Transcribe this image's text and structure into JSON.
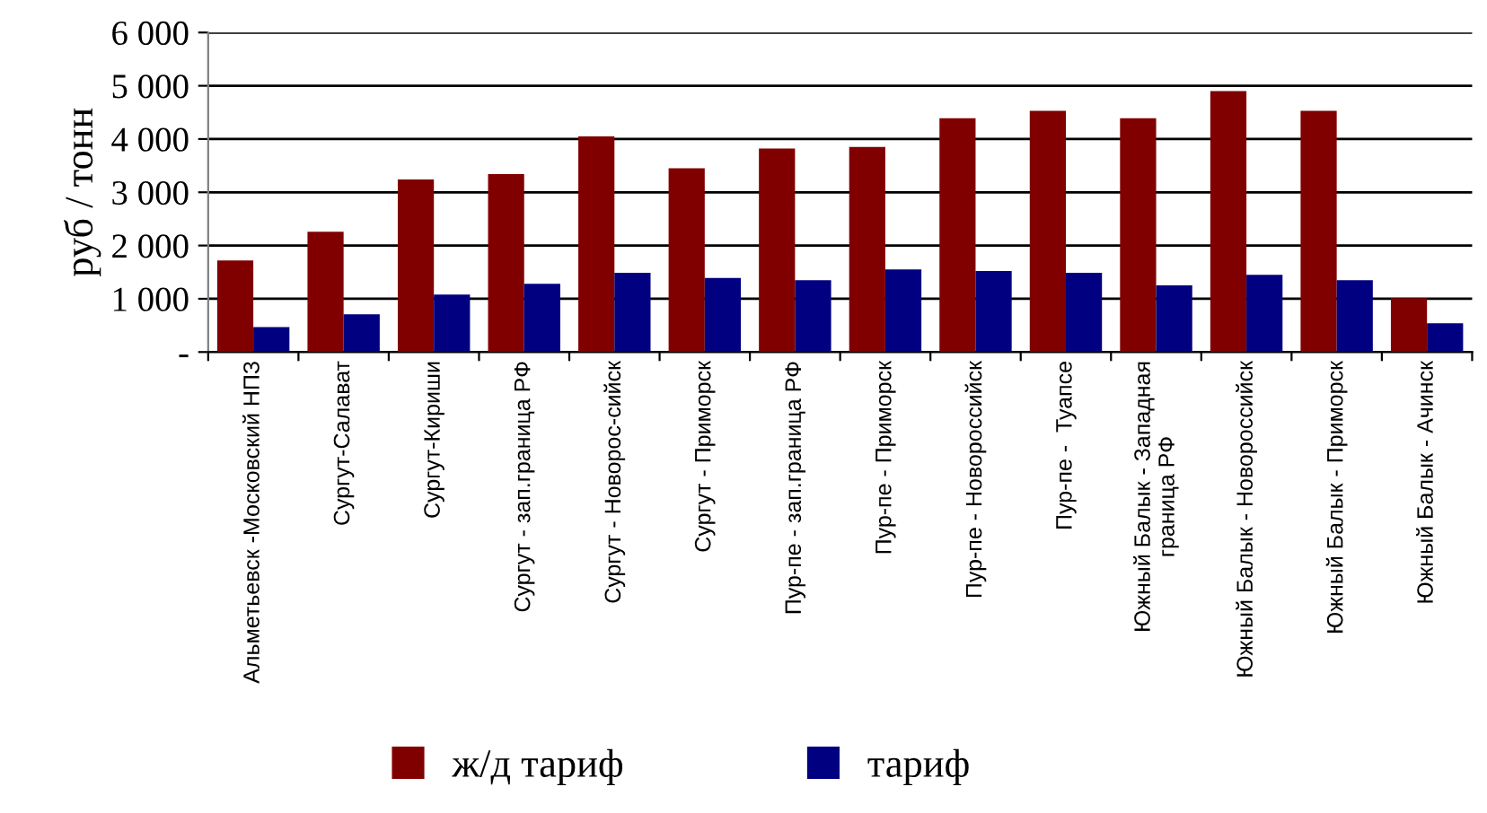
{
  "chart_data": {
    "type": "bar",
    "ylabel": "руб / тонн",
    "categories": [
      "Альметьевск -Московский НПЗ",
      "Сургут-Салават",
      "Сургут-Кириши",
      "Сургут - зап.граница РФ",
      "Сургут - Новорос-сийск",
      "Сургут - Приморск",
      "Пур-пе - зап.граница РФ",
      "Пур-пе - Приморск",
      "Пур-пе - Новороссийск",
      "Пур-пе -  Туапсе",
      "Южный Балык - Западная\nграница РФ",
      "Южный Балык - Новороссийск",
      "Южный Балык - Приморск",
      "Южный Балык - Ачинск"
    ],
    "series": [
      {
        "name": "ж/д тариф",
        "color": "#800000",
        "values": [
          1720,
          2260,
          3240,
          3340,
          4050,
          3450,
          3820,
          3850,
          4390,
          4530,
          4390,
          4900,
          4530,
          1010
        ]
      },
      {
        "name": "тариф",
        "color": "#000080",
        "values": [
          470,
          710,
          1080,
          1280,
          1490,
          1390,
          1350,
          1550,
          1520,
          1490,
          1250,
          1450,
          1350,
          540
        ]
      }
    ],
    "ylim": [
      0,
      6000
    ],
    "yticks": [
      {
        "value": 0,
        "label": "-"
      },
      {
        "value": 1000,
        "label": "1 000"
      },
      {
        "value": 2000,
        "label": "2 000"
      },
      {
        "value": 3000,
        "label": "3 000"
      },
      {
        "value": 4000,
        "label": "4 000"
      },
      {
        "value": 5000,
        "label": "5 000"
      },
      {
        "value": 6000,
        "label": "6 000"
      }
    ],
    "grid": "y",
    "legend": "bottom"
  }
}
